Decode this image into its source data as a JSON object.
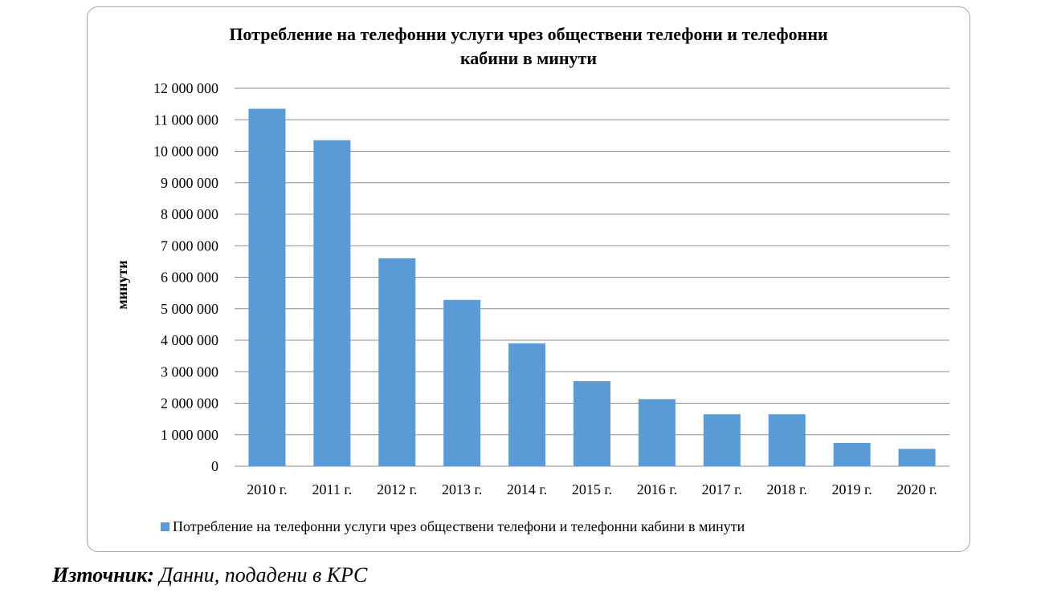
{
  "chart_data": {
    "type": "bar",
    "title_line1": "Потребление на телефонни услуги чрез обществени телефони и телефонни",
    "title_line2": "кабини в минути",
    "ylabel": "минути",
    "categories": [
      "2010 г.",
      "2011 г.",
      "2012 г.",
      "2013 г.",
      "2014 г.",
      "2015 г.",
      "2016 г.",
      "2017 г.",
      "2018 г.",
      "2019 г.",
      "2020 г."
    ],
    "series": [
      {
        "name": "Потребление на телефонни услуги чрез обществени телефони и телефонни кабини в минути",
        "values": [
          11350000,
          10350000,
          6600000,
          5280000,
          3900000,
          2700000,
          2130000,
          1650000,
          1650000,
          740000,
          550000
        ]
      }
    ],
    "ylim": [
      0,
      12000000
    ],
    "yticks": [
      "0",
      "1 000 000",
      "2 000 000",
      "3 000 000",
      "4 000 000",
      "5 000 000",
      "6 000 000",
      "7 000 000",
      "8 000 000",
      "9 000 000",
      "10 000 000",
      "11 000 000",
      "12 000 000"
    ],
    "grid": true,
    "legend_position": "bottom",
    "bar_color": "#5b9bd5"
  },
  "source": {
    "label": "Източник:",
    "text": " Данни, подадени в КРС"
  }
}
